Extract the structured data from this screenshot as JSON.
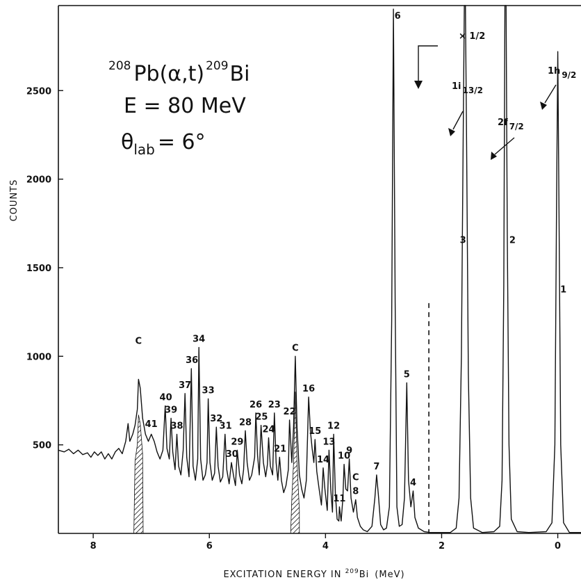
{
  "chart_data": {
    "type": "line",
    "title_lines": {
      "reaction": {
        "target_mass": "208",
        "target": "Pb",
        "projectile_ejectile": "(α,t)",
        "product_mass": "209",
        "product": "Bi"
      },
      "energy": "E  = 80 MeV",
      "angle": {
        "symbol": "θ",
        "subscript": "lab",
        "value": "= 6°"
      }
    },
    "xlabel": {
      "prefix": "EXCITATION  ENERGY  IN ",
      "isotope_mass": "209",
      "isotope": "Bi",
      "unit": "(MeV)"
    },
    "ylabel": "COUNTS",
    "x_reversed": true,
    "xlim": [
      8.6,
      -0.4
    ],
    "ylim": [
      0,
      2980
    ],
    "x_ticks": [
      8,
      6,
      4,
      2,
      0
    ],
    "x_tick_labels": [
      "8",
      "6",
      "4",
      "2",
      "0"
    ],
    "y_ticks": [
      500,
      1000,
      1500,
      2000,
      2500
    ],
    "y_tick_labels": [
      "500",
      "1000",
      "1500",
      "2000",
      "2500"
    ],
    "scale_note": "× 1/2",
    "scale_change_energy": 2.22,
    "dashed_marker_energy": 2.22,
    "state_annotations": [
      {
        "label": "1h",
        "sub": "9/2",
        "peak": 1
      },
      {
        "label": "2f",
        "sub": "7/2",
        "peak": 2
      },
      {
        "label": "1i",
        "sub": "13/2",
        "peak": 3
      }
    ],
    "contaminants": [
      {
        "label": "C",
        "energy": 7.22
      },
      {
        "label": "C",
        "energy": 4.52
      },
      {
        "label": "C",
        "energy": 3.48
      }
    ],
    "peaks": [
      {
        "label": "1",
        "energy": 0.0,
        "counts": 2720
      },
      {
        "label": "2",
        "energy": 0.9,
        "counts": 2980
      },
      {
        "label": "3",
        "energy": 1.61,
        "counts": 2980
      },
      {
        "label": "4",
        "energy": 2.49,
        "counts": 240
      },
      {
        "label": "5",
        "energy": 2.6,
        "counts": 850
      },
      {
        "label": "6",
        "energy": 2.83,
        "counts": 2960
      },
      {
        "label": "7",
        "energy": 3.12,
        "counts": 330
      },
      {
        "label": "8",
        "energy": 3.48,
        "counts": 190
      },
      {
        "label": "9",
        "energy": 3.59,
        "counts": 420
      },
      {
        "label": "10",
        "energy": 3.68,
        "counts": 390
      },
      {
        "label": "11",
        "energy": 3.76,
        "counts": 150
      },
      {
        "label": "12",
        "energy": 3.86,
        "counts": 560
      },
      {
        "label": "13",
        "energy": 3.94,
        "counts": 470
      },
      {
        "label": "14",
        "energy": 4.04,
        "counts": 370
      },
      {
        "label": "15",
        "energy": 4.18,
        "counts": 530
      },
      {
        "label": "16",
        "energy": 4.29,
        "counts": 770
      },
      {
        "label": "21",
        "energy": 4.78,
        "counts": 430
      },
      {
        "label": "22",
        "energy": 4.62,
        "counts": 640
      },
      {
        "label": "23",
        "energy": 4.88,
        "counts": 680
      },
      {
        "label": "24",
        "energy": 4.98,
        "counts": 540
      },
      {
        "label": "25",
        "energy": 5.1,
        "counts": 610
      },
      {
        "label": "26",
        "energy": 5.2,
        "counts": 680
      },
      {
        "label": "28",
        "energy": 5.38,
        "counts": 580
      },
      {
        "label": "29",
        "energy": 5.52,
        "counts": 470
      },
      {
        "label": "30",
        "energy": 5.61,
        "counts": 400
      },
      {
        "label": "31",
        "energy": 5.72,
        "counts": 560
      },
      {
        "label": "32",
        "energy": 5.88,
        "counts": 600
      },
      {
        "label": "33",
        "energy": 6.02,
        "counts": 760
      },
      {
        "label": "34",
        "energy": 6.18,
        "counts": 1050
      },
      {
        "label": "36",
        "energy": 6.3,
        "counts": 930
      },
      {
        "label": "37",
        "energy": 6.42,
        "counts": 790
      },
      {
        "label": "38",
        "energy": 6.56,
        "counts": 560
      },
      {
        "label": "39",
        "energy": 6.66,
        "counts": 650
      },
      {
        "label": "40",
        "energy": 6.75,
        "counts": 720
      },
      {
        "label": "41",
        "energy": 7.0,
        "counts": 570
      }
    ],
    "spectrum": [
      [
        8.6,
        470
      ],
      [
        8.5,
        460
      ],
      [
        8.42,
        475
      ],
      [
        8.34,
        450
      ],
      [
        8.26,
        470
      ],
      [
        8.18,
        445
      ],
      [
        8.1,
        455
      ],
      [
        8.04,
        430
      ],
      [
        7.98,
        460
      ],
      [
        7.92,
        440
      ],
      [
        7.86,
        460
      ],
      [
        7.8,
        420
      ],
      [
        7.74,
        450
      ],
      [
        7.68,
        420
      ],
      [
        7.62,
        460
      ],
      [
        7.56,
        480
      ],
      [
        7.5,
        450
      ],
      [
        7.44,
        520
      ],
      [
        7.4,
        620
      ],
      [
        7.37,
        520
      ],
      [
        7.32,
        560
      ],
      [
        7.28,
        610
      ],
      [
        7.24,
        700
      ],
      [
        7.22,
        870
      ],
      [
        7.19,
        820
      ],
      [
        7.15,
        650
      ],
      [
        7.1,
        560
      ],
      [
        7.05,
        520
      ],
      [
        7.0,
        560
      ],
      [
        6.95,
        520
      ],
      [
        6.9,
        460
      ],
      [
        6.85,
        420
      ],
      [
        6.8,
        470
      ],
      [
        6.76,
        720
      ],
      [
        6.73,
        480
      ],
      [
        6.69,
        420
      ],
      [
        6.66,
        650
      ],
      [
        6.63,
        460
      ],
      [
        6.59,
        360
      ],
      [
        6.56,
        560
      ],
      [
        6.53,
        380
      ],
      [
        6.49,
        330
      ],
      [
        6.45,
        470
      ],
      [
        6.42,
        790
      ],
      [
        6.39,
        430
      ],
      [
        6.35,
        320
      ],
      [
        6.31,
        930
      ],
      [
        6.28,
        380
      ],
      [
        6.24,
        300
      ],
      [
        6.2,
        420
      ],
      [
        6.18,
        1050
      ],
      [
        6.15,
        420
      ],
      [
        6.11,
        300
      ],
      [
        6.07,
        330
      ],
      [
        6.04,
        400
      ],
      [
        6.02,
        760
      ],
      [
        5.99,
        400
      ],
      [
        5.95,
        300
      ],
      [
        5.91,
        340
      ],
      [
        5.88,
        600
      ],
      [
        5.85,
        380
      ],
      [
        5.81,
        290
      ],
      [
        5.77,
        320
      ],
      [
        5.73,
        560
      ],
      [
        5.7,
        360
      ],
      [
        5.66,
        280
      ],
      [
        5.62,
        400
      ],
      [
        5.58,
        320
      ],
      [
        5.55,
        270
      ],
      [
        5.52,
        470
      ],
      [
        5.48,
        330
      ],
      [
        5.44,
        280
      ],
      [
        5.41,
        360
      ],
      [
        5.38,
        580
      ],
      [
        5.35,
        400
      ],
      [
        5.31,
        300
      ],
      [
        5.27,
        330
      ],
      [
        5.22,
        430
      ],
      [
        5.2,
        680
      ],
      [
        5.17,
        440
      ],
      [
        5.14,
        330
      ],
      [
        5.11,
        610
      ],
      [
        5.07,
        400
      ],
      [
        5.03,
        320
      ],
      [
        5.0,
        390
      ],
      [
        4.98,
        540
      ],
      [
        4.95,
        380
      ],
      [
        4.91,
        330
      ],
      [
        4.88,
        680
      ],
      [
        4.85,
        400
      ],
      [
        4.82,
        300
      ],
      [
        4.79,
        430
      ],
      [
        4.76,
        300
      ],
      [
        4.72,
        230
      ],
      [
        4.68,
        270
      ],
      [
        4.64,
        360
      ],
      [
        4.62,
        640
      ],
      [
        4.58,
        400
      ],
      [
        4.55,
        600
      ],
      [
        4.52,
        1000
      ],
      [
        4.49,
        600
      ],
      [
        4.45,
        330
      ],
      [
        4.41,
        250
      ],
      [
        4.37,
        200
      ],
      [
        4.33,
        300
      ],
      [
        4.29,
        770
      ],
      [
        4.26,
        580
      ],
      [
        4.23,
        480
      ],
      [
        4.2,
        400
      ],
      [
        4.18,
        530
      ],
      [
        4.15,
        350
      ],
      [
        4.11,
        250
      ],
      [
        4.07,
        160
      ],
      [
        4.04,
        370
      ],
      [
        4.01,
        250
      ],
      [
        3.97,
        130
      ],
      [
        3.94,
        470
      ],
      [
        3.91,
        250
      ],
      [
        3.88,
        120
      ],
      [
        3.86,
        560
      ],
      [
        3.83,
        220
      ],
      [
        3.8,
        80
      ],
      [
        3.77,
        70
      ],
      [
        3.76,
        150
      ],
      [
        3.73,
        70
      ],
      [
        3.7,
        200
      ],
      [
        3.68,
        390
      ],
      [
        3.65,
        250
      ],
      [
        3.62,
        240
      ],
      [
        3.59,
        420
      ],
      [
        3.56,
        200
      ],
      [
        3.52,
        120
      ],
      [
        3.48,
        190
      ],
      [
        3.45,
        90
      ],
      [
        3.4,
        40
      ],
      [
        3.35,
        20
      ],
      [
        3.28,
        10
      ],
      [
        3.2,
        40
      ],
      [
        3.15,
        200
      ],
      [
        3.12,
        330
      ],
      [
        3.09,
        220
      ],
      [
        3.05,
        50
      ],
      [
        3.0,
        20
      ],
      [
        2.95,
        30
      ],
      [
        2.9,
        150
      ],
      [
        2.86,
        1200
      ],
      [
        2.83,
        2960
      ],
      [
        2.8,
        1300
      ],
      [
        2.77,
        150
      ],
      [
        2.73,
        40
      ],
      [
        2.68,
        50
      ],
      [
        2.64,
        200
      ],
      [
        2.6,
        850
      ],
      [
        2.57,
        300
      ],
      [
        2.53,
        150
      ],
      [
        2.49,
        240
      ],
      [
        2.46,
        90
      ],
      [
        2.4,
        30
      ],
      [
        2.3,
        10
      ],
      [
        2.2,
        5
      ],
      [
        2.0,
        5
      ],
      [
        1.85,
        5
      ],
      [
        1.75,
        30
      ],
      [
        1.7,
        200
      ],
      [
        1.66,
        1000
      ],
      [
        1.63,
        2200
      ],
      [
        1.61,
        2980
      ],
      [
        1.59,
        2980
      ],
      [
        1.57,
        2200
      ],
      [
        1.54,
        900
      ],
      [
        1.5,
        200
      ],
      [
        1.45,
        30
      ],
      [
        1.3,
        5
      ],
      [
        1.1,
        10
      ],
      [
        1.0,
        40
      ],
      [
        0.96,
        300
      ],
      [
        0.93,
        1400
      ],
      [
        0.91,
        2980
      ],
      [
        0.89,
        2980
      ],
      [
        0.87,
        1700
      ],
      [
        0.84,
        500
      ],
      [
        0.8,
        80
      ],
      [
        0.7,
        10
      ],
      [
        0.5,
        5
      ],
      [
        0.2,
        10
      ],
      [
        0.1,
        60
      ],
      [
        0.05,
        500
      ],
      [
        0.02,
        1900
      ],
      [
        0.0,
        2720
      ],
      [
        -0.02,
        1900
      ],
      [
        -0.05,
        500
      ],
      [
        -0.1,
        60
      ],
      [
        -0.2,
        5
      ],
      [
        -0.4,
        5
      ]
    ]
  }
}
